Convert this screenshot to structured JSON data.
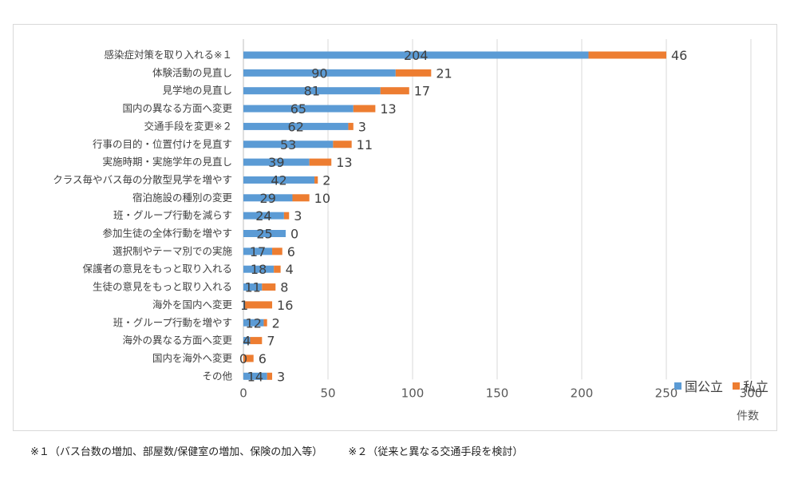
{
  "chart_data": {
    "type": "bar",
    "orientation": "horizontal",
    "stacked": true,
    "categories": [
      "感染症対策を取り入れる※１",
      "体験活動の見直し",
      "見学地の見直し",
      "国内の異なる方面へ変更",
      "交通手段を変更※２",
      "行事の目的・位置付けを見直す",
      "実施時期・実施学年の見直し",
      "クラス毎やバス毎の分散型見学を増やす",
      "宿泊施設の種別の変更",
      "班・グループ行動を減らす",
      "参加生徒の全体行動を増やす",
      "選択制やテーマ別での実施",
      "保護者の意見をもっと取り入れる",
      "生徒の意見をもっと取り入れる",
      "海外を国内へ変更",
      "班・グループ行動を増やす",
      "海外の異なる方面へ変更",
      "国内を海外へ変更",
      "その他"
    ],
    "series": [
      {
        "name": "国公立",
        "color": "#5b9bd5",
        "values": [
          204,
          90,
          81,
          65,
          62,
          53,
          39,
          42,
          29,
          24,
          25,
          17,
          18,
          11,
          1,
          12,
          4,
          0,
          14
        ]
      },
      {
        "name": "私立",
        "color": "#ed7d31",
        "values": [
          46,
          21,
          17,
          13,
          3,
          11,
          13,
          2,
          10,
          3,
          0,
          6,
          4,
          8,
          16,
          2,
          7,
          6,
          3
        ]
      }
    ],
    "xlim": [
      0,
      300
    ],
    "xticks": [
      "0",
      "50",
      "100",
      "150",
      "200",
      "250",
      "300"
    ],
    "xlabel": "件数",
    "grid": "vertical",
    "legend": "bottom-right"
  },
  "footnotes": [
    "※１（バス台数の増加、部屋数/保健室の増加、保険の加入等）",
    "※２（従来と異なる交通手段を検討）"
  ]
}
